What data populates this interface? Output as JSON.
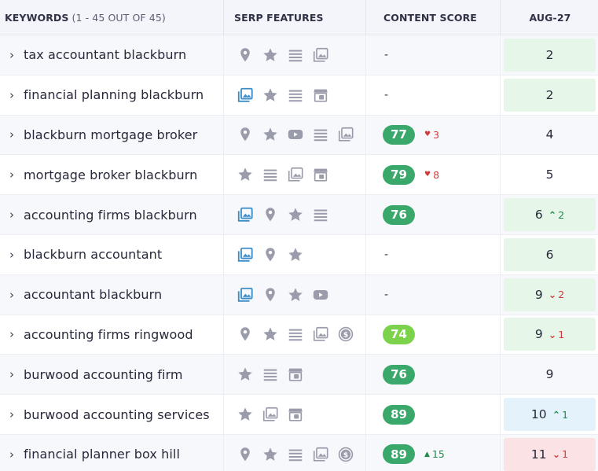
{
  "header": {
    "keywords_label": "KEYWORDS",
    "keywords_count": "(1 - 45 OUT OF 45)",
    "serp_label": "SERP FEATURES",
    "score_label": "CONTENT SCORE",
    "date_label": "AUG-27"
  },
  "colors": {
    "score_dark_green": "#3aa86b",
    "score_light_green": "#7cd34b",
    "rank_green_bg": "#e6f6e8",
    "rank_blue_bg": "#e4f2fb",
    "rank_red_bg": "#fbe3e5",
    "serp_blue": "#3c8dc7",
    "serp_gray": "#9a9cab"
  },
  "rows": [
    {
      "keyword": "tax accountant blackburn",
      "serp": [
        "map-pin",
        "star",
        "list",
        "image"
      ],
      "score": "-",
      "score_delta": "",
      "rank": "2",
      "rank_delta": ""
    },
    {
      "keyword": "financial planning blackburn",
      "serp": [
        "image-blue",
        "star",
        "list",
        "shop"
      ],
      "score": "-",
      "score_delta": "",
      "rank": "2",
      "rank_delta": ""
    },
    {
      "keyword": "blackburn mortgage broker",
      "serp": [
        "map-pin",
        "star",
        "video",
        "list",
        "image"
      ],
      "score": "77",
      "score_delta": "3",
      "rank": "4",
      "rank_delta": ""
    },
    {
      "keyword": "mortgage broker blackburn",
      "serp": [
        "star",
        "list",
        "image",
        "shop"
      ],
      "score": "79",
      "score_delta": "8",
      "rank": "5",
      "rank_delta": ""
    },
    {
      "keyword": "accounting firms blackburn",
      "serp": [
        "image-blue",
        "map-pin",
        "star",
        "list"
      ],
      "score": "76",
      "score_delta": "",
      "rank": "6",
      "rank_delta": "2"
    },
    {
      "keyword": "blackburn accountant",
      "serp": [
        "image-blue",
        "map-pin",
        "star"
      ],
      "score": "-",
      "score_delta": "",
      "rank": "6",
      "rank_delta": ""
    },
    {
      "keyword": "accountant blackburn",
      "serp": [
        "image-blue",
        "map-pin",
        "star",
        "video"
      ],
      "score": "-",
      "score_delta": "",
      "rank": "9",
      "rank_delta": "2"
    },
    {
      "keyword": "accounting firms ringwood",
      "serp": [
        "map-pin",
        "star",
        "list",
        "image",
        "dollar"
      ],
      "score": "74",
      "score_delta": "",
      "rank": "9",
      "rank_delta": "1"
    },
    {
      "keyword": "burwood accounting firm",
      "serp": [
        "star",
        "list",
        "shop"
      ],
      "score": "76",
      "score_delta": "",
      "rank": "9",
      "rank_delta": ""
    },
    {
      "keyword": "burwood accounting services",
      "serp": [
        "star",
        "image",
        "shop"
      ],
      "score": "89",
      "score_delta": "",
      "rank": "10",
      "rank_delta": "1"
    },
    {
      "keyword": "financial planner box hill",
      "serp": [
        "map-pin",
        "star",
        "list",
        "image",
        "dollar"
      ],
      "score": "89",
      "score_delta": "15",
      "rank": "11",
      "rank_delta": "1"
    }
  ]
}
